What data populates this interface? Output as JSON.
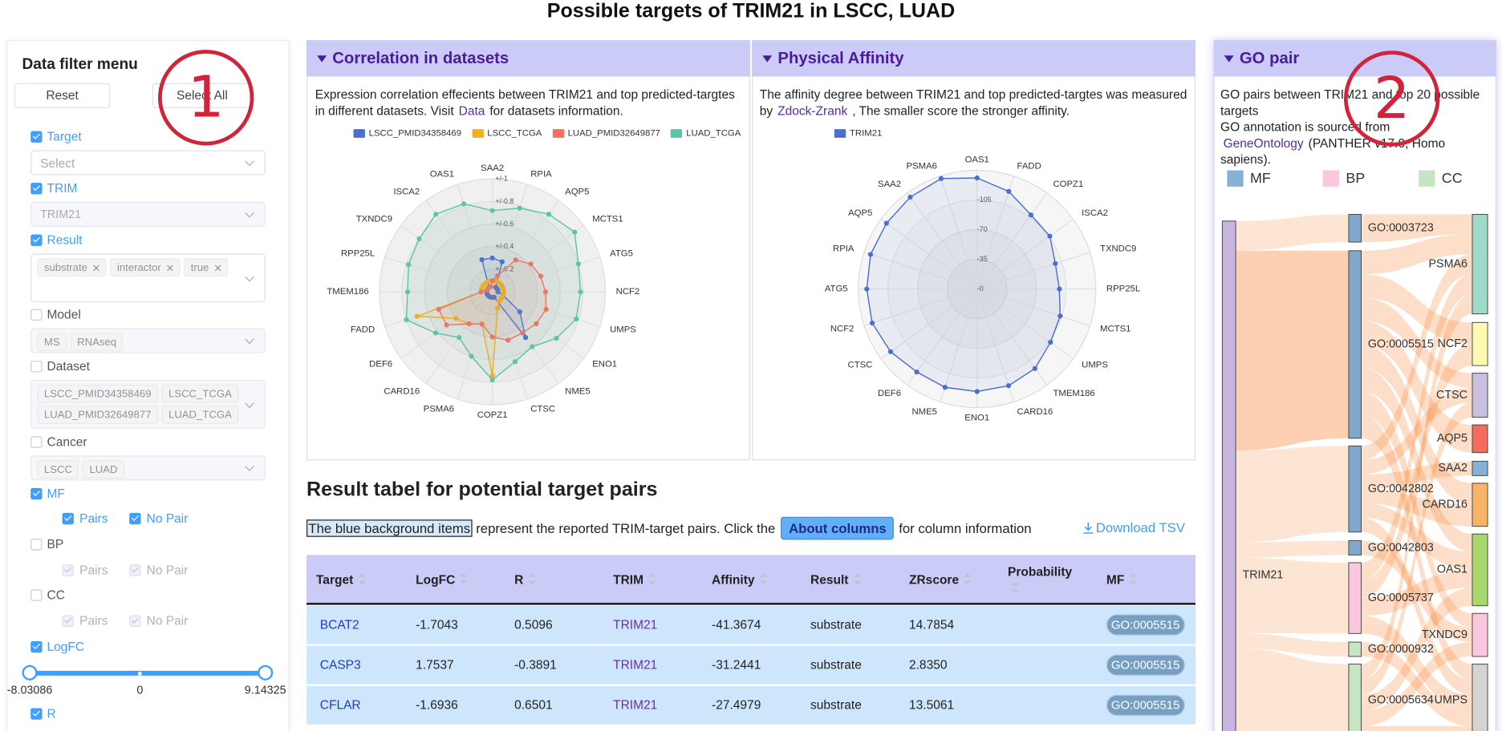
{
  "header": {
    "title": "Possible targets of TRIM21 in LSCC, LUAD"
  },
  "annotations": [
    "1",
    "2"
  ],
  "filter": {
    "title": "Data filter menu",
    "reset": "Reset",
    "select_all": "Select All",
    "target": {
      "label": "Target",
      "checked": true,
      "placeholder": "Select"
    },
    "trim": {
      "label": "TRIM",
      "checked": true,
      "value": "TRIM21"
    },
    "result": {
      "label": "Result",
      "checked": true,
      "tags": [
        "substrate",
        "interactor",
        "true"
      ]
    },
    "model": {
      "label": "Model",
      "checked": false,
      "tags": [
        "MS",
        "RNAseq"
      ]
    },
    "dataset": {
      "label": "Dataset",
      "checked": false,
      "tags": [
        "LSCC_PMID34358469",
        "LSCC_TCGA",
        "LUAD_PMID32649877",
        "LUAD_TCGA"
      ]
    },
    "cancer": {
      "label": "Cancer",
      "checked": false,
      "tags": [
        "LSCC",
        "LUAD"
      ]
    },
    "mf": {
      "label": "MF",
      "checked": true,
      "pairs": {
        "label": "Pairs",
        "checked": true
      },
      "no_pair": {
        "label": "No Pair",
        "checked": true
      }
    },
    "bp": {
      "label": "BP",
      "checked": false,
      "pairs": {
        "label": "Pairs",
        "checked": true
      },
      "no_pair": {
        "label": "No Pair",
        "checked": true
      }
    },
    "cc": {
      "label": "CC",
      "checked": false,
      "pairs": {
        "label": "Pairs",
        "checked": true
      },
      "no_pair": {
        "label": "No Pair",
        "checked": true
      }
    },
    "logfc": {
      "label": "LogFC",
      "checked": true,
      "values": [
        -8.03086,
        9.14325
      ],
      "ticks": [
        -8.03086,
        0,
        9.14325
      ]
    },
    "r": {
      "label": "R",
      "checked": true
    }
  },
  "correlation": {
    "title": "Correlation in datasets",
    "description": "Expression correlation effecients between TRIM21 and top predicted-targtes in different datasets. Visit",
    "link": "Data",
    "description_end": "for datasets information.",
    "chart": {
      "type": "radar",
      "categories": [
        "SAA2",
        "RPIA",
        "AQP5",
        "MCTS1",
        "ATG5",
        "NCF2",
        "UMPS",
        "ENO1",
        "NME5",
        "CTSC",
        "COPZ1",
        "PSMA6",
        "CARD16",
        "DEF6",
        "FADD",
        "TMEM186",
        "RPP25L",
        "TXNDC9",
        "ISCA2",
        "OAS1"
      ],
      "ylim": [
        0,
        1
      ],
      "yticks": [
        {
          "value": 0.2,
          "label": "+/-0.2"
        },
        {
          "value": 0.4,
          "label": "+/-0.4"
        },
        {
          "value": 0.6,
          "label": "+/-0.6"
        },
        {
          "value": 0.8,
          "label": "+/-0.8"
        },
        {
          "value": 1,
          "label": "+/-1"
        }
      ],
      "series": [
        {
          "name": "LSCC_PMID34358469",
          "color": "#4a6fd0",
          "values": [
            0.3,
            0.28,
            0.05,
            0.05,
            0.05,
            0.05,
            0.1,
            0.3,
            0.5,
            0.05,
            0.05,
            0.05,
            0.05,
            0.05,
            0.05,
            0.05,
            0.05,
            0.05,
            0.05,
            0.3
          ]
        },
        {
          "name": "LSCC_TCGA",
          "color": "#f2b01e",
          "values": [
            0.1,
            0.1,
            0.1,
            0.1,
            0.1,
            0.1,
            0.1,
            0.1,
            0.1,
            0.15,
            0.74,
            0.3,
            0.35,
            0.4,
            0.7,
            0.1,
            0.1,
            0.1,
            0.1,
            0.1
          ]
        },
        {
          "name": "LUAD_PMID32649877",
          "color": "#f4725e",
          "values": [
            0.1,
            0.15,
            0.35,
            0.42,
            0.45,
            0.47,
            0.5,
            0.48,
            0.45,
            0.45,
            0.4,
            0.3,
            0.35,
            0.5,
            0.5,
            0.1,
            0.05,
            0.05,
            0.05,
            0.05
          ]
        },
        {
          "name": "LUAD_TCGA",
          "color": "#5cc5a5",
          "values": [
            0.72,
            0.78,
            0.85,
            0.9,
            0.8,
            0.78,
            0.78,
            0.7,
            0.6,
            0.65,
            0.78,
            0.6,
            0.5,
            0.62,
            0.8,
            0.75,
            0.78,
            0.8,
            0.85,
            0.82
          ]
        }
      ]
    }
  },
  "affinity": {
    "title": "Physical Affinity",
    "description": "The affinity degree between TRIM21 and top predicted-targtes was measured by",
    "link": "Zdock-Zrank",
    "description_end": ", The smaller score the stronger affinity.",
    "chart": {
      "type": "radar",
      "categories": [
        "OAS1",
        "FADD",
        "COPZ1",
        "ISCA2",
        "TXNDC9",
        "RPP25L",
        "MCTS1",
        "UMPS",
        "TMEM186",
        "CARD16",
        "ENO1",
        "NME5",
        "DEF6",
        "CTSC",
        "NCF2",
        "ATG5",
        "RPIA",
        "AQP5",
        "SAA2",
        "PSMA6"
      ],
      "ylim": [
        0,
        -140
      ],
      "yticks": [
        {
          "value": 0,
          "label": "-0"
        },
        -35,
        -70,
        -105
      ],
      "series": [
        {
          "name": "TRIM21",
          "color": "#4a6fd0",
          "values": [
            -131,
            -121,
            -108,
            -106,
            -97,
            -97,
            -103,
            -107,
            -116,
            -120,
            -121,
            -122,
            -121,
            -126,
            -130,
            -130,
            -132,
            -132,
            -134,
            -137
          ]
        }
      ]
    }
  },
  "results": {
    "title": "Result tabel for potential target pairs",
    "note_highlight": "The blue background items",
    "note": "represent the reported TRIM-target pairs. Click the",
    "button": "About columns",
    "note_end": "for column information",
    "download": "Download TSV",
    "columns": [
      "Target",
      "LogFC",
      "R",
      "TRIM",
      "Affinity",
      "Result",
      "ZRscore",
      "Probability",
      "MF"
    ],
    "rows": [
      {
        "target": "BCAT2",
        "logfc": "-1.7043",
        "r": "0.5096",
        "trim": "TRIM21",
        "affinity": "-41.3674",
        "result": "substrate",
        "zrscore": "14.7854",
        "mf": "GO:0005515"
      },
      {
        "target": "CASP3",
        "logfc": "1.7537",
        "r": "-0.3891",
        "trim": "TRIM21",
        "affinity": "-31.2441",
        "result": "substrate",
        "zrscore": "2.8350",
        "mf": "GO:0005515"
      },
      {
        "target": "CFLAR",
        "logfc": "-1.6936",
        "r": "0.6501",
        "trim": "TRIM21",
        "affinity": "-27.4979",
        "result": "substrate",
        "zrscore": "13.5061",
        "mf": "GO:0005515"
      }
    ]
  },
  "go_pair": {
    "title": "GO pair",
    "description": "GO pairs between TRIM21 and top 20 possible targets",
    "description2": "GO annotation is sourced from",
    "link": "GeneOntology",
    "link_after": "(PANTHER v17.0, Homo sapiens).",
    "legend": [
      {
        "name": "MF",
        "color": "#86b1d6"
      },
      {
        "name": "BP",
        "color": "#f9c8de"
      },
      {
        "name": "CC",
        "color": "#c6e6c3"
      }
    ],
    "source": "TRIM21",
    "go_terms": [
      "GO:0003723",
      "GO:0005515",
      "GO:0042802",
      "GO:0042803",
      "GO:0005737",
      "GO:0000932",
      "GO:0005634"
    ],
    "targets": [
      "PSMA6",
      "NCF2",
      "CTSC",
      "AQP5",
      "SAA2",
      "CARD16",
      "OAS1",
      "TXNDC9",
      "UMPS"
    ]
  }
}
